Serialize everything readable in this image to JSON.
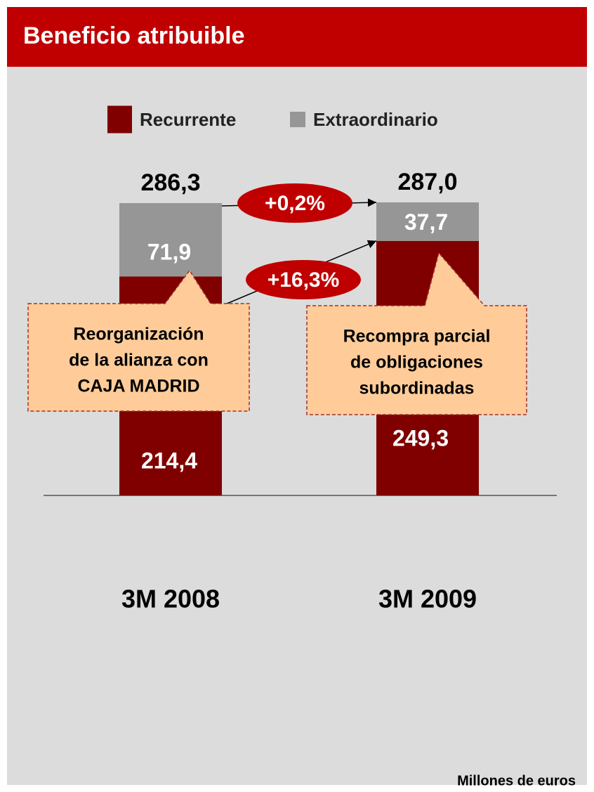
{
  "chart_data": {
    "type": "stacked_bar",
    "title": "Beneficio atribuible",
    "categories": [
      "3M 2008",
      "3M 2009"
    ],
    "series": [
      {
        "name": "Recurrente",
        "color": "#800000",
        "values": [
          214.4,
          249.3
        ],
        "value_labels": [
          "214,4",
          "249,3"
        ]
      },
      {
        "name": "Extraordinario",
        "color": "#969696",
        "values": [
          71.9,
          37.7
        ],
        "value_labels": [
          "71,9",
          "37,7"
        ]
      }
    ],
    "totals": [
      286.3,
      287.0
    ],
    "total_labels": [
      "286,3",
      "287,0"
    ],
    "changes": [
      "+0,2%",
      "+16,3%"
    ],
    "callouts": [
      {
        "lines": [
          "Reorganización",
          "de la alianza con",
          "CAJA MADRID"
        ]
      },
      {
        "lines": [
          "Recompra parcial",
          "de obligaciones",
          "subordinadas"
        ]
      }
    ],
    "unit_note": "Millones de euros"
  }
}
